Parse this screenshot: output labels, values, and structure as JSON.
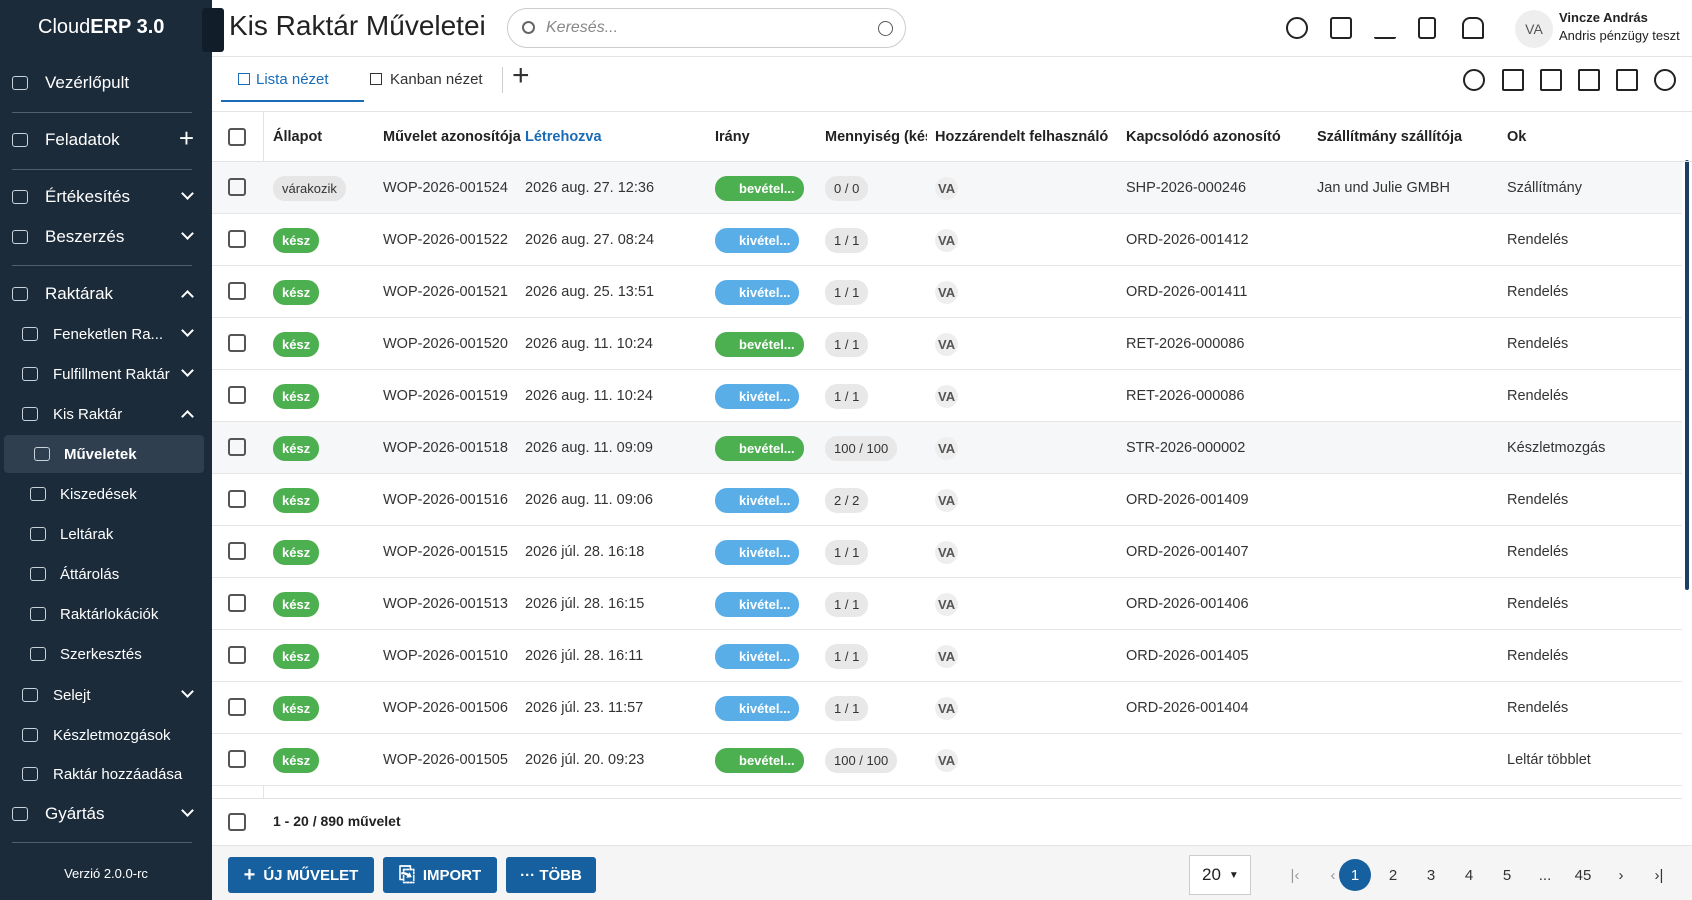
{
  "logo": {
    "prefix": "Cloud",
    "suffix": "ERP 3.0"
  },
  "sidebar": [
    "Vezérlőpult",
    "Feladatok",
    "Értékesítés",
    "Beszerzés",
    "Raktárak",
    "Feneketlen Ra...",
    "Fulfillment Raktár",
    "Kis Raktár",
    "Műveletek",
    "Kiszedések",
    "Leltárak",
    "Áttárolás",
    "Raktárlokációk",
    "Szerkesztés",
    "Selejt",
    "Készletmozgások",
    "Raktár hozzáadása",
    "Gyártás"
  ],
  "version": "Verzió 2.0.0-rc",
  "header": {
    "title": "Kis Raktár Műveletei",
    "search": "Keresés...",
    "avatar": "VA",
    "user": "Vincze András",
    "role": "Andris pénzügy teszt"
  },
  "tabs": [
    "Lista nézet",
    "Kanban nézet"
  ],
  "table": {
    "columns": [
      "Állapot",
      "Művelet azonosítója",
      "Létrehozva",
      "Irány",
      "Mennyiség (kész)",
      "Hozzárendelt felhasználó",
      "Kapcsolódó azonosító",
      "Szállítmány szállítója",
      "Ok"
    ],
    "rows": [
      [
        "várakozik",
        "WOP-2026-001524",
        "2026 aug. 27. 12:36",
        "bevétel...",
        "0 / 0",
        "VA",
        "SHP-2026-000246",
        "Jan und Julie GMBH",
        "Szállítmány"
      ],
      [
        "kész",
        "WOP-2026-001522",
        "2026 aug. 27. 08:24",
        "kivétel...",
        "1 / 1",
        "VA",
        "ORD-2026-001412",
        "",
        "Rendelés"
      ],
      [
        "kész",
        "WOP-2026-001521",
        "2026 aug. 25. 13:51",
        "kivétel...",
        "1 / 1",
        "VA",
        "ORD-2026-001411",
        "",
        "Rendelés"
      ],
      [
        "kész",
        "WOP-2026-001520",
        "2026 aug. 11. 10:24",
        "bevétel...",
        "1 / 1",
        "VA",
        "RET-2026-000086",
        "",
        "Rendelés"
      ],
      [
        "kész",
        "WOP-2026-001519",
        "2026 aug. 11. 10:24",
        "kivétel...",
        "1 / 1",
        "VA",
        "RET-2026-000086",
        "",
        "Rendelés"
      ],
      [
        "kész",
        "WOP-2026-001518",
        "2026 aug. 11. 09:09",
        "bevétel...",
        "100 / 100",
        "VA",
        "STR-2026-000002",
        "",
        "Készletmozgás"
      ],
      [
        "kész",
        "WOP-2026-001516",
        "2026 aug. 11. 09:06",
        "kivétel...",
        "2 / 2",
        "VA",
        "ORD-2026-001409",
        "",
        "Rendelés"
      ],
      [
        "kész",
        "WOP-2026-001515",
        "2026 júl. 28. 16:18",
        "kivétel...",
        "1 / 1",
        "VA",
        "ORD-2026-001407",
        "",
        "Rendelés"
      ],
      [
        "kész",
        "WOP-2026-001513",
        "2026 júl. 28. 16:15",
        "kivétel...",
        "1 / 1",
        "VA",
        "ORD-2026-001406",
        "",
        "Rendelés"
      ],
      [
        "kész",
        "WOP-2026-001510",
        "2026 júl. 28. 16:11",
        "kivétel...",
        "1 / 1",
        "VA",
        "ORD-2026-001405",
        "",
        "Rendelés"
      ],
      [
        "kész",
        "WOP-2026-001506",
        "2026 júl. 23. 11:57",
        "kivétel...",
        "1 / 1",
        "VA",
        "ORD-2026-001404",
        "",
        "Rendelés"
      ],
      [
        "kész",
        "WOP-2026-001505",
        "2026 júl. 20. 09:23",
        "bevétel...",
        "100 / 100",
        "VA",
        "",
        "",
        "Leltár többlet"
      ]
    ]
  },
  "summary": "1 - 20 / 890 művelet",
  "buttons": [
    "ÚJ MŰVELET",
    "IMPORT",
    "··· TÖBB"
  ],
  "pagination": {
    "page_size": "20",
    "pages": [
      "1",
      "2",
      "3",
      "4",
      "5",
      "...",
      "45"
    ]
  }
}
